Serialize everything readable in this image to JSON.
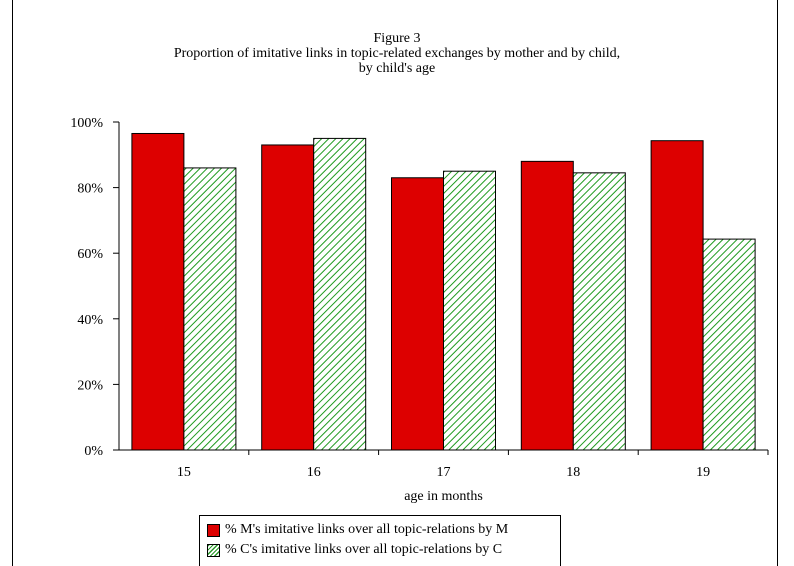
{
  "chart_data": {
    "type": "bar",
    "title": "Figure 3",
    "subtitle_lines": [
      "Proportion of imitative links in topic-related exchanges by mother and by child,",
      "by child's age"
    ],
    "xlabel": "age in months",
    "ylabel": "",
    "categories": [
      "15",
      "16",
      "17",
      "18",
      "19"
    ],
    "series": [
      {
        "name": "% M's imitative links over all topic-relations by M",
        "values": [
          96.5,
          93,
          83,
          88,
          94.3
        ],
        "color": "#dd0000",
        "fill": "solid"
      },
      {
        "name": "% C's imitative links over all topic-relations by C",
        "values": [
          86,
          95,
          85,
          84.5,
          64.3
        ],
        "color": "#1f9a1f",
        "fill": "hatched"
      }
    ],
    "ylim": [
      0,
      100
    ],
    "yticks": [
      0,
      20,
      40,
      60,
      80,
      100
    ],
    "ytick_labels": [
      "0%",
      "20%",
      "40%",
      "60%",
      "80%",
      "100%"
    ],
    "grid": false,
    "legend_position": "bottom"
  }
}
